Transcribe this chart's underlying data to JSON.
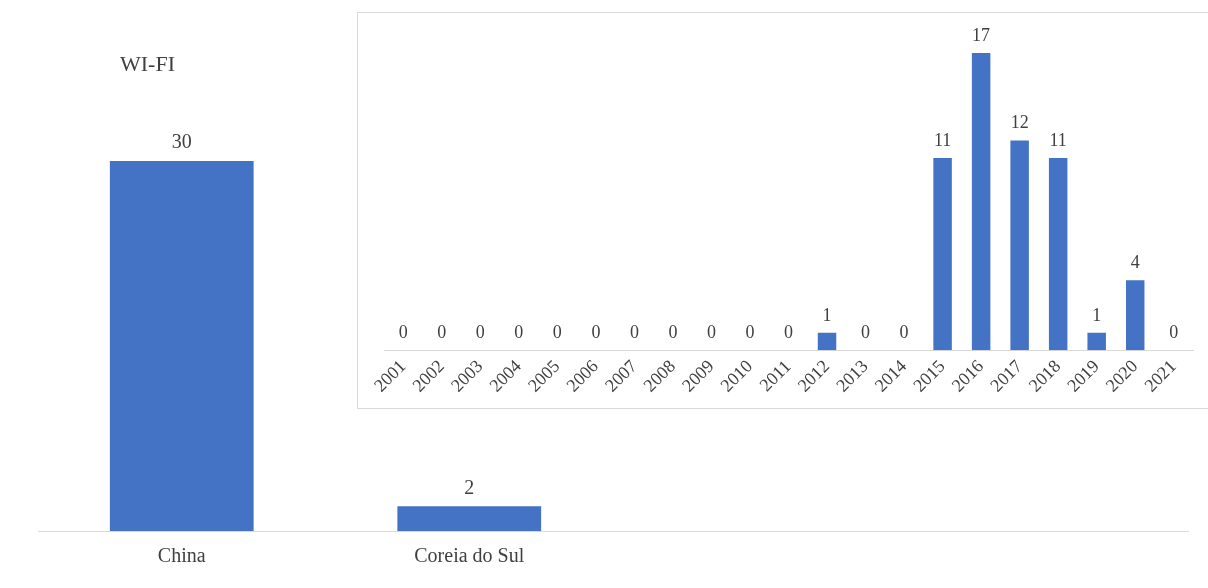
{
  "chart_data": [
    {
      "type": "bar",
      "title": "WI-FI",
      "categories": [
        "China",
        "Coreia do Sul",
        null,
        null
      ],
      "values": [
        30,
        2,
        null,
        null
      ],
      "color": "#4472c4",
      "data_labels": true,
      "grid": false,
      "legend": false,
      "tick_labels": "x"
    },
    {
      "type": "bar",
      "categories": [
        "2001",
        "2002",
        "2003",
        "2004",
        "2005",
        "2006",
        "2007",
        "2008",
        "2009",
        "2010",
        "2011",
        "2012",
        "2013",
        "2014",
        "2015",
        "2016",
        "2017",
        "2018",
        "2019",
        "2020",
        "2021"
      ],
      "values": [
        0,
        0,
        0,
        0,
        0,
        0,
        0,
        0,
        0,
        0,
        0,
        1,
        0,
        0,
        11,
        17,
        12,
        11,
        1,
        4,
        0
      ],
      "color": "#4472c4",
      "data_labels": true,
      "grid": false,
      "legend": false,
      "tick_labels": "x"
    }
  ]
}
